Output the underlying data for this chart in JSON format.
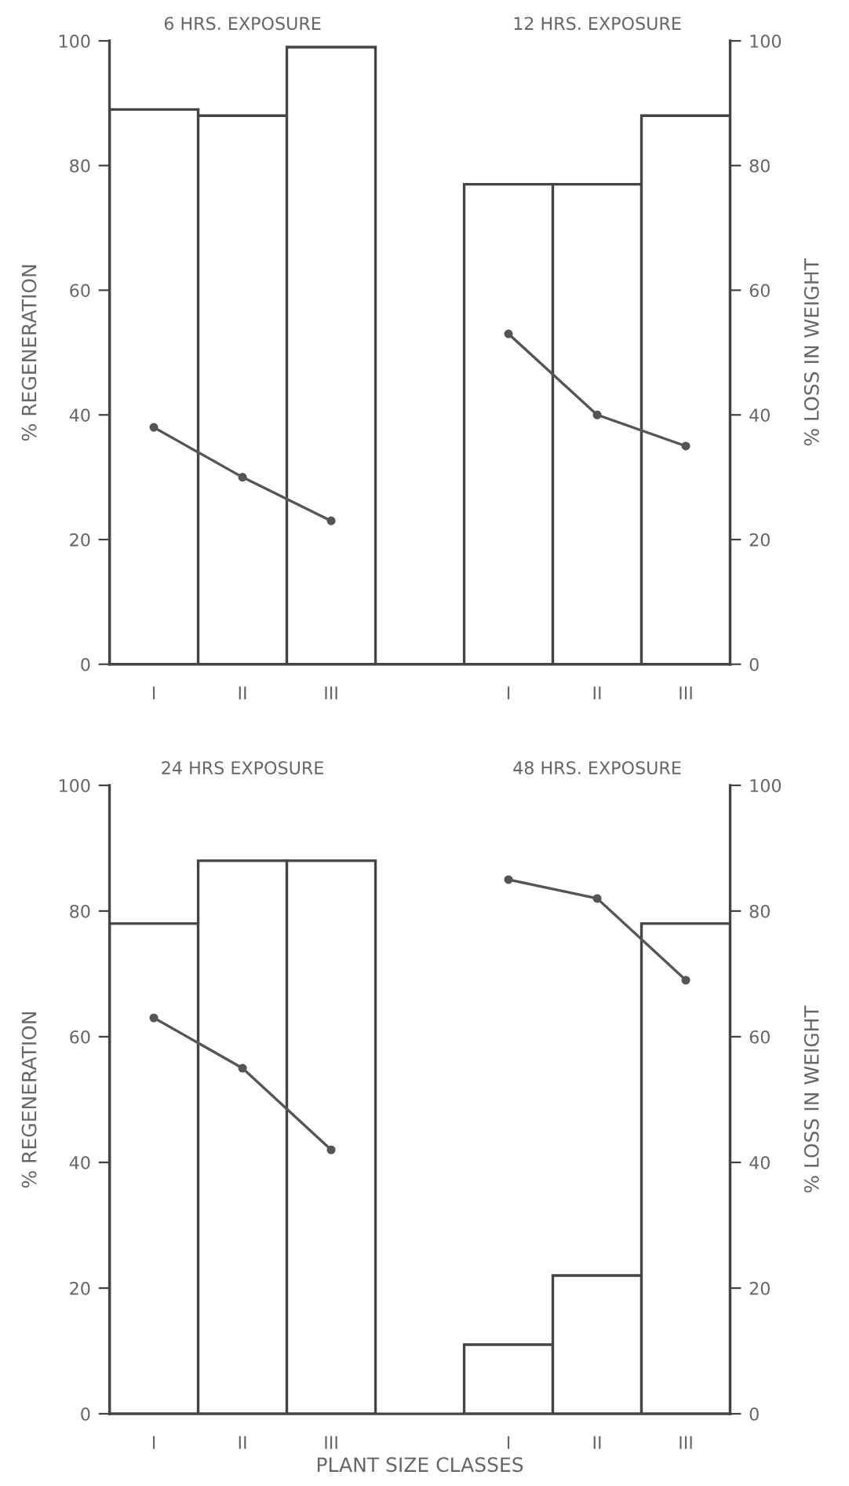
{
  "chart_data": [
    {
      "type": "bar",
      "categories": [
        "I",
        "II",
        "III",
        null,
        "I",
        "II",
        "III"
      ],
      "ylabel": "% REGENERATION",
      "y2label": "% LOSS IN WEIGHT",
      "annotations": [
        "6 HRS. EXPOSURE",
        "12 HRS. EXPOSURE"
      ],
      "series": [
        {
          "color": "#ffffff",
          "values": [
            89,
            88,
            99,
            null,
            77,
            77,
            88
          ]
        },
        {
          "type": "line",
          "axis": "y2",
          "color": "#555555",
          "values": [
            38,
            30,
            23,
            null,
            53,
            40,
            35
          ]
        }
      ],
      "ylim": [
        0,
        100
      ],
      "yticks": [
        0,
        20,
        40,
        60,
        80,
        100
      ],
      "y2lim": [
        0,
        100
      ],
      "y2ticks": [
        0,
        20,
        40,
        60,
        80,
        100
      ],
      "marker": "circle",
      "line_style": "solid",
      "grid": false
    },
    {
      "type": "bar",
      "categories": [
        "I",
        "II",
        "III",
        null,
        "I",
        "II",
        "III"
      ],
      "xlabel": "PLANT SIZE CLASSES",
      "ylabel": "% REGENERATION",
      "y2label": "% LOSS IN WEIGHT",
      "annotations": [
        "24 HRS EXPOSURE",
        "48 HRS. EXPOSURE"
      ],
      "series": [
        {
          "color": "#ffffff",
          "values": [
            78,
            88,
            88,
            null,
            11,
            22,
            78
          ]
        },
        {
          "type": "line",
          "axis": "y2",
          "color": "#555555",
          "values": [
            63,
            55,
            42,
            null,
            85,
            82,
            69
          ]
        }
      ],
      "ylim": [
        0,
        100
      ],
      "yticks": [
        0,
        20,
        40,
        60,
        80,
        100
      ],
      "y2lim": [
        0,
        100
      ],
      "y2ticks": [
        0,
        20,
        40,
        60,
        80,
        100
      ],
      "marker": "circle",
      "line_style": "solid",
      "grid": false
    }
  ]
}
